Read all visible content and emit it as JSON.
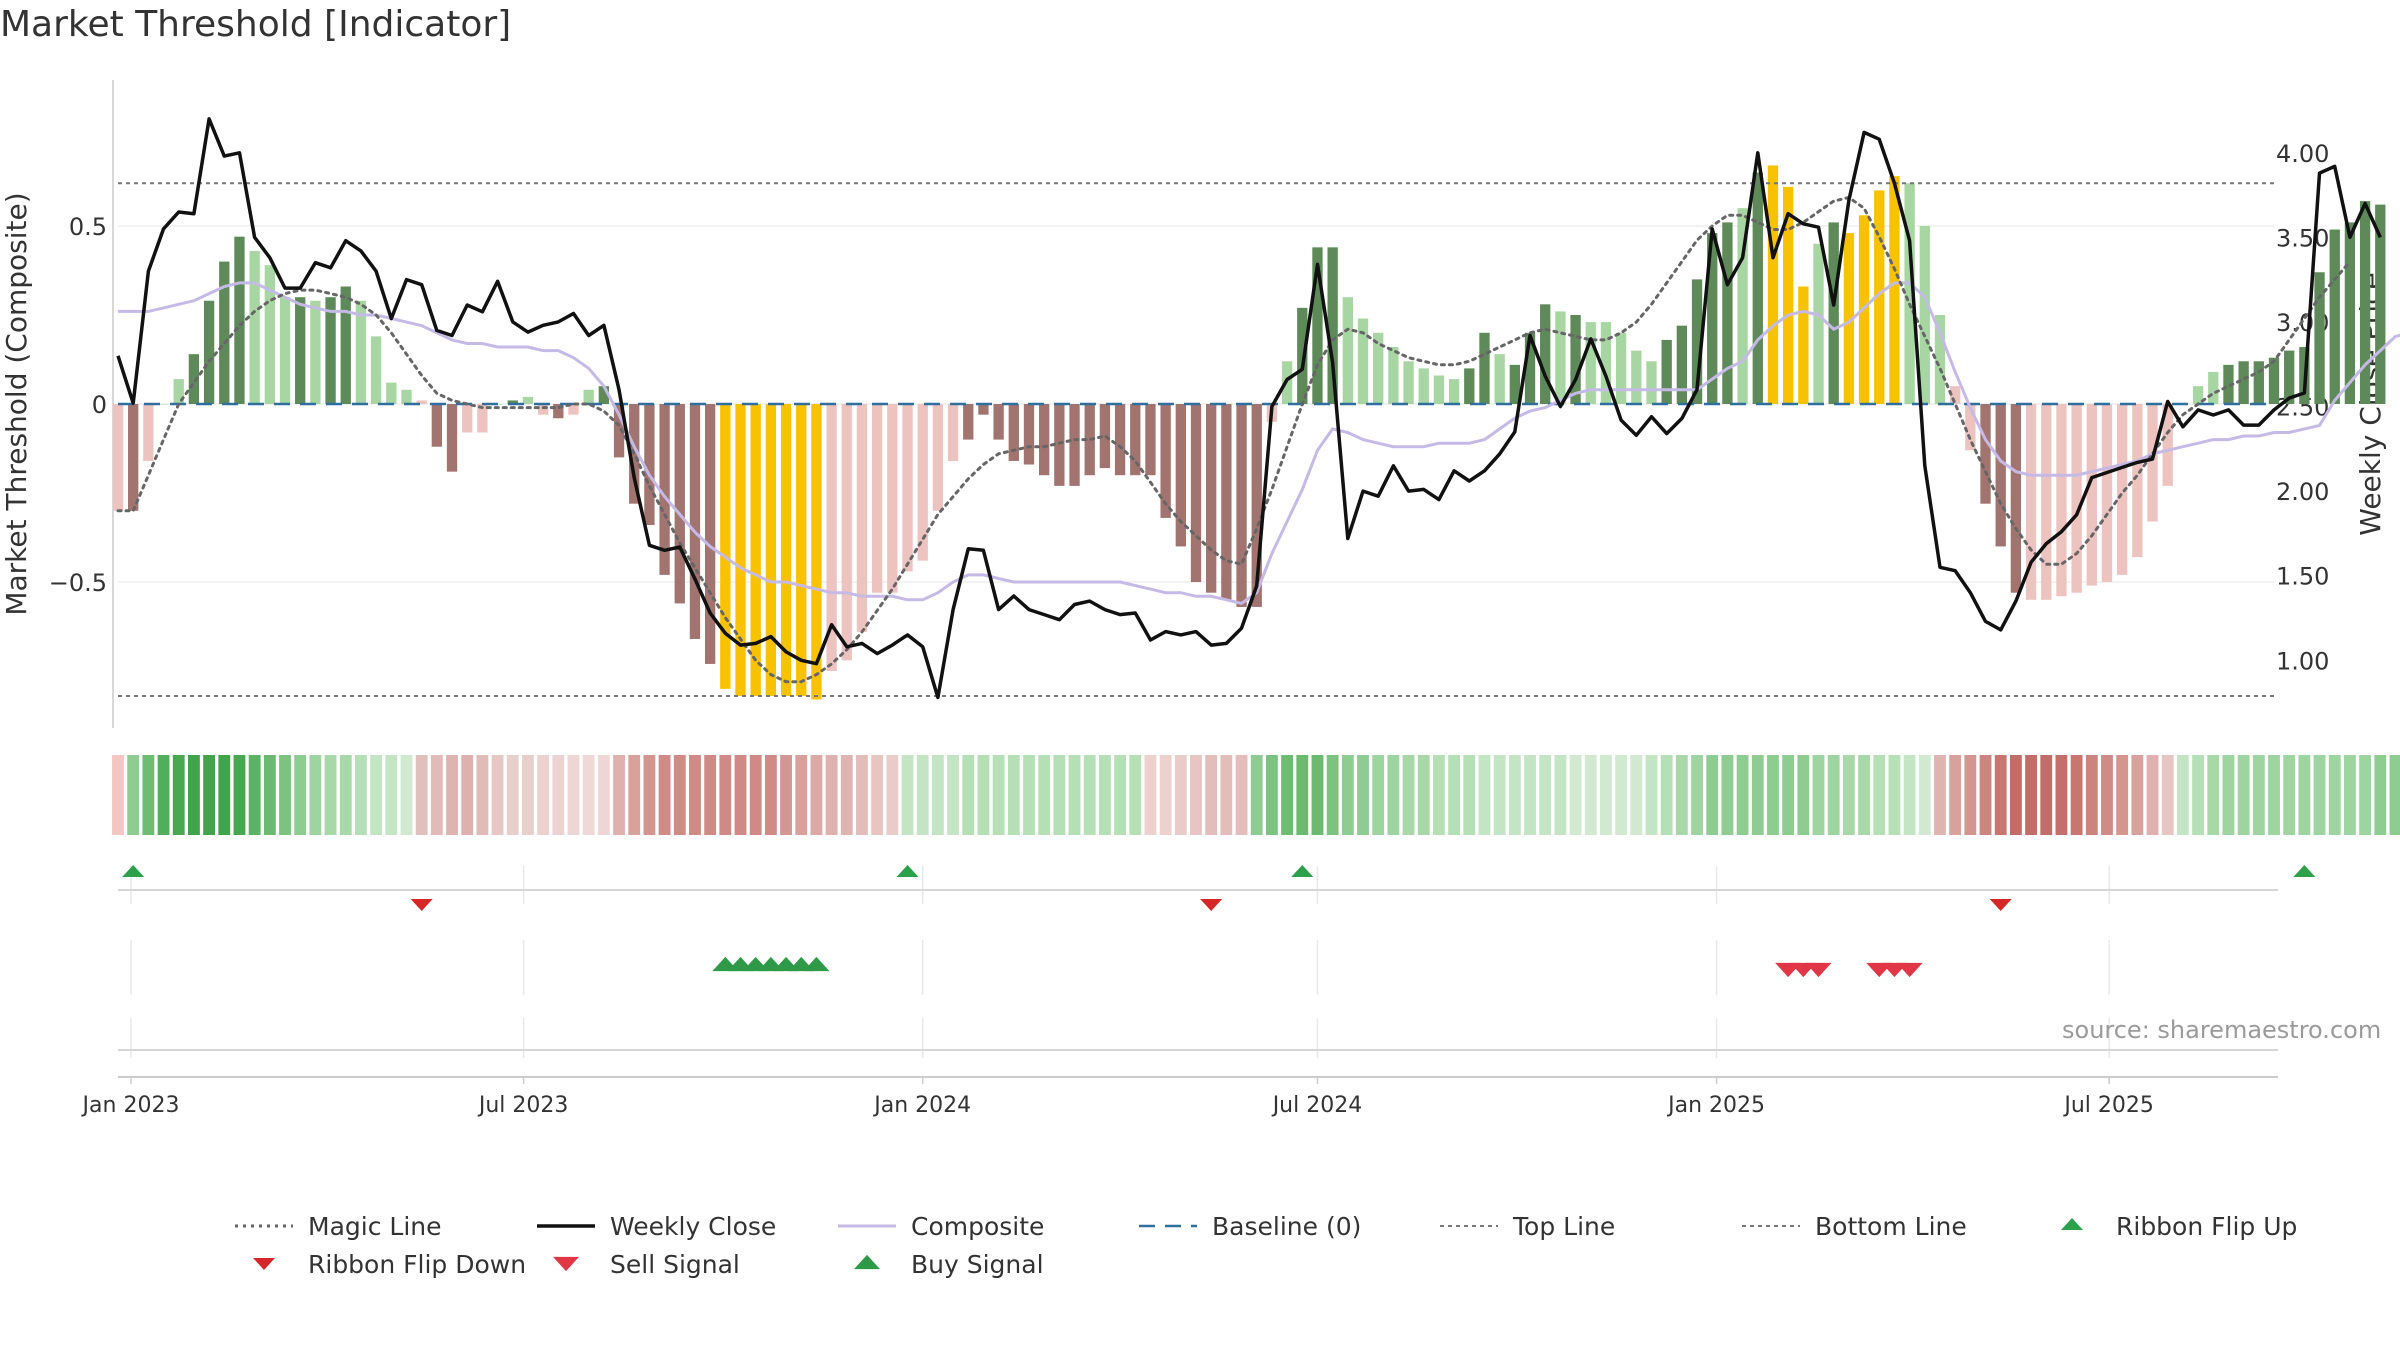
{
  "title": "Market Threshold [Indicator]",
  "watermark": "source: sharemaestro.com",
  "colors": {
    "text": "#333333",
    "grid": "#e6e6e6",
    "magic": "#666666",
    "weekly": "#111111",
    "composite": "#c5b9e6",
    "baseline": "#2e6f9e",
    "threshold": "#777777",
    "pos_dark": "#5e8a5a",
    "pos_light": "#a8d6a3",
    "neg_dark": "#a27470",
    "neg_light": "#edc3c0",
    "extreme": "#f8c200",
    "up_marker": "#2ca04a",
    "down_marker": "#d62728",
    "sell_marker": "#e03646",
    "buy_marker": "#2e9a48"
  },
  "chart_data": {
    "type": "bar",
    "title": "Market Threshold [Indicator]",
    "xlabel": "",
    "ylabel": "Market Threshold (Composite)",
    "y2label": "Weekly Close Price",
    "ylim": [
      -0.91,
      0.91
    ],
    "y2lim": [
      0.6,
      4.43
    ],
    "yticks": [
      {
        "v": 0.5,
        "label": "0.5"
      },
      {
        "v": 0,
        "label": "0"
      },
      {
        "v": -0.5,
        "label": "−0.5"
      }
    ],
    "y2ticks": [
      {
        "v": 4.0,
        "label": "4.00"
      },
      {
        "v": 3.5,
        "label": "3.50"
      },
      {
        "v": 3.0,
        "label": "3.00"
      },
      {
        "v": 2.5,
        "label": "2.50"
      },
      {
        "v": 2.0,
        "label": "2.00"
      },
      {
        "v": 1.5,
        "label": "1.50"
      },
      {
        "v": 1.0,
        "label": "1.00"
      }
    ],
    "x_start": "2022-12-26",
    "x_end": "2025-09-15",
    "xticks": [
      {
        "date": "2023-01-01",
        "label": "Jan 2023"
      },
      {
        "date": "2023-07-01",
        "label": "Jul 2023"
      },
      {
        "date": "2024-01-01",
        "label": "Jan 2024"
      },
      {
        "date": "2024-07-01",
        "label": "Jul 2024"
      },
      {
        "date": "2025-01-01",
        "label": "Jan 2025"
      },
      {
        "date": "2025-07-01",
        "label": "Jul 2025"
      }
    ],
    "first_week": "2022-12-26",
    "week_step_days": 7,
    "top_line": 0.62,
    "bottom_line": -0.82,
    "baseline": 0,
    "composite_bars": [
      -0.3,
      -0.3,
      -0.16,
      0,
      0.07,
      0.14,
      0.29,
      0.4,
      0.47,
      0.43,
      0.39,
      0.3,
      0.3,
      0.29,
      0.3,
      0.33,
      0.29,
      0.19,
      0.06,
      0.04,
      0.01,
      -0.12,
      -0.19,
      -0.08,
      -0.08,
      0,
      0.01,
      0.02,
      -0.03,
      -0.04,
      -0.03,
      0.04,
      0.05,
      -0.15,
      -0.28,
      -0.34,
      -0.48,
      -0.56,
      -0.66,
      -0.73,
      -0.8,
      -0.82,
      -0.82,
      -0.82,
      -0.82,
      -0.82,
      -0.83,
      -0.75,
      -0.72,
      -0.64,
      -0.53,
      -0.53,
      -0.47,
      -0.44,
      -0.3,
      -0.16,
      -0.1,
      -0.03,
      -0.1,
      -0.16,
      -0.17,
      -0.2,
      -0.23,
      -0.23,
      -0.2,
      -0.18,
      -0.2,
      -0.2,
      -0.2,
      -0.32,
      -0.4,
      -0.5,
      -0.53,
      -0.55,
      -0.57,
      -0.57,
      -0.05,
      0.12,
      0.27,
      0.44,
      0.44,
      0.3,
      0.24,
      0.2,
      0.16,
      0.12,
      0.1,
      0.08,
      0.07,
      0.1,
      0.2,
      0.14,
      0.11,
      0.2,
      0.28,
      0.26,
      0.25,
      0.23,
      0.23,
      0.2,
      0.15,
      0.12,
      0.18,
      0.22,
      0.35,
      0.48,
      0.51,
      0.55,
      0.65,
      0.67,
      0.61,
      0.33,
      0.45,
      0.51,
      0.48,
      0.53,
      0.6,
      0.64,
      0.62,
      0.5,
      0.25,
      0.05,
      -0.13,
      -0.28,
      -0.4,
      -0.53,
      -0.55,
      -0.55,
      -0.54,
      -0.53,
      -0.51,
      -0.5,
      -0.48,
      -0.43,
      -0.33,
      -0.23,
      0,
      0.05,
      0.09,
      0.11,
      0.12,
      0.12,
      0.13,
      0.15,
      0.16,
      0.37,
      0.49,
      0.51,
      0.57,
      0.56
    ],
    "bar_shade": [
      "nl",
      "nd",
      "nl",
      "pl",
      "pl",
      "pd",
      "pd",
      "pd",
      "pd",
      "pl",
      "pl",
      "pl",
      "pd",
      "pl",
      "pd",
      "pd",
      "pl",
      "pl",
      "pl",
      "pl",
      "nl",
      "nd",
      "nd",
      "nl",
      "nl",
      "pl",
      "pd",
      "pl",
      "nl",
      "nd",
      "nl",
      "pl",
      "pd",
      "nd",
      "nd",
      "nd",
      "nd",
      "nd",
      "nd",
      "nd",
      "x",
      "x",
      "x",
      "x",
      "x",
      "x",
      "x",
      "nl",
      "nl",
      "nl",
      "nl",
      "nl",
      "nl",
      "nl",
      "nl",
      "nl",
      "nd",
      "nd",
      "nd",
      "nd",
      "nd",
      "nd",
      "nd",
      "nd",
      "nd",
      "nd",
      "nd",
      "nd",
      "nd",
      "nd",
      "nd",
      "nd",
      "nd",
      "nd",
      "nd",
      "nd",
      "nl",
      "pl",
      "pd",
      "pd",
      "pd",
      "pl",
      "pl",
      "pl",
      "pl",
      "pl",
      "pl",
      "pl",
      "pl",
      "pd",
      "pd",
      "pl",
      "pd",
      "pd",
      "pd",
      "pl",
      "pd",
      "pl",
      "pl",
      "pl",
      "pl",
      "pl",
      "pd",
      "pd",
      "pd",
      "pd",
      "pd",
      "pl",
      "pd",
      "x",
      "x",
      "x",
      "pl",
      "pd",
      "x",
      "x",
      "x",
      "x",
      "pl",
      "pl",
      "pl",
      "nl",
      "nl",
      "nd",
      "nd",
      "nd",
      "nl",
      "nl",
      "nl",
      "nl",
      "nl",
      "nl",
      "nl",
      "nl",
      "nl",
      "nl",
      "nl",
      "pl",
      "pl",
      "pd",
      "pd",
      "pd",
      "pd",
      "pd",
      "pd",
      "pd",
      "pd",
      "pd",
      "pd",
      "pd",
      "pl"
    ],
    "series": [
      {
        "name": "Magic Line",
        "style": "dotted",
        "axis": "left",
        "values": [
          -0.3,
          -0.3,
          -0.2,
          -0.1,
          0,
          0.06,
          0.12,
          0.17,
          0.22,
          0.26,
          0.29,
          0.31,
          0.32,
          0.32,
          0.31,
          0.3,
          0.28,
          0.25,
          0.2,
          0.14,
          0.08,
          0.03,
          0.01,
          0,
          -0.01,
          -0.01,
          -0.01,
          -0.01,
          -0.01,
          -0.01,
          0,
          0,
          -0.02,
          -0.06,
          -0.14,
          -0.23,
          -0.31,
          -0.39,
          -0.46,
          -0.53,
          -0.6,
          -0.66,
          -0.72,
          -0.76,
          -0.78,
          -0.78,
          -0.76,
          -0.73,
          -0.69,
          -0.64,
          -0.58,
          -0.52,
          -0.45,
          -0.38,
          -0.31,
          -0.26,
          -0.21,
          -0.17,
          -0.14,
          -0.13,
          -0.12,
          -0.12,
          -0.11,
          -0.1,
          -0.1,
          -0.09,
          -0.12,
          -0.16,
          -0.22,
          -0.28,
          -0.33,
          -0.37,
          -0.41,
          -0.44,
          -0.45,
          -0.35,
          -0.24,
          -0.12,
          0,
          0.11,
          0.18,
          0.21,
          0.2,
          0.17,
          0.15,
          0.13,
          0.12,
          0.11,
          0.11,
          0.12,
          0.14,
          0.16,
          0.18,
          0.2,
          0.21,
          0.2,
          0.19,
          0.18,
          0.18,
          0.2,
          0.23,
          0.28,
          0.34,
          0.4,
          0.46,
          0.5,
          0.53,
          0.53,
          0.51,
          0.49,
          0.49,
          0.51,
          0.54,
          0.57,
          0.58,
          0.55,
          0.47,
          0.38,
          0.28,
          0.19,
          0.1,
          0,
          -0.1,
          -0.19,
          -0.28,
          -0.35,
          -0.41,
          -0.45,
          -0.45,
          -0.42,
          -0.37,
          -0.31,
          -0.25,
          -0.2,
          -0.14,
          -0.08,
          -0.03,
          0,
          0.03,
          0.05,
          0.07,
          0.09,
          0.12,
          0.18,
          0.24,
          0.3,
          0.35,
          0.4
        ]
      },
      {
        "name": "Weekly Close",
        "style": "solid",
        "axis": "right",
        "values": [
          2.8,
          2.52,
          3.3,
          3.55,
          3.65,
          3.64,
          4.2,
          3.98,
          4.0,
          3.5,
          3.38,
          3.2,
          3.2,
          3.35,
          3.32,
          3.48,
          3.42,
          3.3,
          3.02,
          3.25,
          3.22,
          2.95,
          2.92,
          3.1,
          3.06,
          3.24,
          3.0,
          2.94,
          2.98,
          3.0,
          3.05,
          2.92,
          2.98,
          2.6,
          2.08,
          1.68,
          1.65,
          1.67,
          1.48,
          1.28,
          1.16,
          1.09,
          1.1,
          1.14,
          1.05,
          1.0,
          0.98,
          1.21,
          1.08,
          1.1,
          1.04,
          1.09,
          1.15,
          1.08,
          0.78,
          1.3,
          1.66,
          1.65,
          1.3,
          1.38,
          1.3,
          1.27,
          1.24,
          1.33,
          1.35,
          1.3,
          1.27,
          1.28,
          1.12,
          1.17,
          1.15,
          1.17,
          1.09,
          1.1,
          1.19,
          1.44,
          2.5,
          2.66,
          2.72,
          3.34,
          2.76,
          1.72,
          2.0,
          1.97,
          2.15,
          2.0,
          2.01,
          1.95,
          2.12,
          2.06,
          2.12,
          2.22,
          2.35,
          2.92,
          2.68,
          2.5,
          2.66,
          2.9,
          2.68,
          2.42,
          2.33,
          2.44,
          2.34,
          2.43,
          2.6,
          3.55,
          3.22,
          3.38,
          4.0,
          3.38,
          3.64,
          3.58,
          3.56,
          3.1,
          3.72,
          4.12,
          4.08,
          3.82,
          3.48,
          2.15,
          1.55,
          1.53,
          1.4,
          1.23,
          1.18,
          1.35,
          1.58,
          1.69,
          1.76,
          1.86,
          2.08,
          2.11,
          2.14,
          2.17,
          2.19,
          2.53,
          2.38,
          2.48,
          2.45,
          2.48,
          2.39,
          2.39,
          2.48,
          2.55,
          2.58,
          3.88,
          3.92,
          3.5,
          3.7,
          3.5
        ],
        "y_values_axis": "right"
      },
      {
        "name": "Composite",
        "style": "solid",
        "axis": "left",
        "values": [
          0.26,
          0.26,
          0.26,
          0.27,
          0.28,
          0.29,
          0.31,
          0.33,
          0.34,
          0.34,
          0.32,
          0.3,
          0.28,
          0.27,
          0.26,
          0.26,
          0.25,
          0.25,
          0.24,
          0.23,
          0.22,
          0.2,
          0.18,
          0.17,
          0.17,
          0.16,
          0.16,
          0.16,
          0.15,
          0.15,
          0.13,
          0.1,
          0.05,
          -0.03,
          -0.12,
          -0.2,
          -0.26,
          -0.31,
          -0.36,
          -0.4,
          -0.43,
          -0.46,
          -0.48,
          -0.5,
          -0.5,
          -0.51,
          -0.52,
          -0.53,
          -0.53,
          -0.54,
          -0.54,
          -0.54,
          -0.55,
          -0.55,
          -0.53,
          -0.5,
          -0.48,
          -0.48,
          -0.49,
          -0.5,
          -0.5,
          -0.5,
          -0.5,
          -0.5,
          -0.5,
          -0.5,
          -0.5,
          -0.51,
          -0.52,
          -0.53,
          -0.53,
          -0.54,
          -0.54,
          -0.55,
          -0.56,
          -0.53,
          -0.42,
          -0.33,
          -0.24,
          -0.13,
          -0.07,
          -0.08,
          -0.1,
          -0.11,
          -0.12,
          -0.12,
          -0.12,
          -0.11,
          -0.11,
          -0.11,
          -0.1,
          -0.07,
          -0.04,
          -0.02,
          -0.01,
          0.01,
          0.03,
          0.04,
          0.04,
          0.04,
          0.04,
          0.04,
          0.04,
          0.04,
          0.04,
          0.07,
          0.1,
          0.12,
          0.18,
          0.22,
          0.25,
          0.26,
          0.25,
          0.21,
          0.23,
          0.27,
          0.31,
          0.34,
          0.34,
          0.3,
          0.2,
          0.09,
          -0.01,
          -0.1,
          -0.16,
          -0.19,
          -0.2,
          -0.2,
          -0.2,
          -0.2,
          -0.19,
          -0.18,
          -0.17,
          -0.16,
          -0.14,
          -0.13,
          -0.12,
          -0.11,
          -0.1,
          -0.1,
          -0.09,
          -0.09,
          -0.08,
          -0.08,
          -0.07,
          -0.06,
          0.01,
          0.06,
          0.11,
          0.15,
          0.19,
          0.2
        ]
      },
      {
        "name": "Baseline (0)",
        "style": "dashed",
        "axis": "left",
        "values": [
          0
        ]
      },
      {
        "name": "Top Line",
        "style": "dotted",
        "axis": "left",
        "values": [
          0.62
        ]
      },
      {
        "name": "Bottom Line",
        "style": "dotted",
        "axis": "left",
        "values": [
          -0.82
        ]
      }
    ],
    "ribbon_colors": [
      "#f2c7c2",
      "#8fcc92",
      "#6dbc72",
      "#52ae5c",
      "#48a852",
      "#41a44c",
      "#41a44c",
      "#41a44c",
      "#48a852",
      "#5ab364",
      "#6bba70",
      "#7cc281",
      "#8fcc92",
      "#9ed49f",
      "#a8d8a8",
      "#a8d8a8",
      "#b5dfb5",
      "#c4e5c3",
      "#c4e5c3",
      "#d0e9cf",
      "#e0c0bd",
      "#e0bbb8",
      "#deb4b1",
      "#deb1ae",
      "#e0bbb8",
      "#e6c7c4",
      "#e7cfcc",
      "#e7cfcc",
      "#ecd1cf",
      "#ecd3d1",
      "#edd6d4",
      "#eed9d7",
      "#edd6d4",
      "#dfb0ac",
      "#d8a19c",
      "#d4958f",
      "#d08b86",
      "#d08b86",
      "#cf8a85",
      "#cf8a85",
      "#cf8a85",
      "#cf8a85",
      "#cf8a85",
      "#d08b86",
      "#d29793",
      "#d8a19c",
      "#dbaaa6",
      "#deb1ae",
      "#deb4b1",
      "#e3bdba",
      "#e6c5c2",
      "#e9ccc9",
      "#c4e5c3",
      "#c4e5c3",
      "#c4e5c3",
      "#c4e5c3",
      "#b5dfb5",
      "#b5dfb5",
      "#b5dfb5",
      "#b5dfb5",
      "#b5dfb5",
      "#b5dfb5",
      "#b5dfb5",
      "#b5dfb5",
      "#b5dfb5",
      "#b5dfb5",
      "#b5dfb5",
      "#b5dfb5",
      "#ecd1cf",
      "#ecd1cf",
      "#e9ccc9",
      "#e6c5c2",
      "#e3bdba",
      "#e3bdba",
      "#e3bdba",
      "#8fcc92",
      "#7cc281",
      "#6dbc72",
      "#6bba70",
      "#6bba70",
      "#7cc281",
      "#8fcc92",
      "#8fcc92",
      "#9ed49f",
      "#9ed49f",
      "#a8d8a8",
      "#a8d8a8",
      "#b5dfb5",
      "#b5dfb5",
      "#b5dfb5",
      "#c4e5c3",
      "#c4e5c3",
      "#c4e5c3",
      "#c4e5c3",
      "#c4e5c3",
      "#c4e5c3",
      "#d0e9cf",
      "#d0e9cf",
      "#d0e9cf",
      "#d0e9cf",
      "#d0e9cf",
      "#c4e5c3",
      "#b5dfb5",
      "#a8d8a8",
      "#9ed49f",
      "#8fcc92",
      "#8fcc92",
      "#8fcc92",
      "#8fcc92",
      "#8fcc92",
      "#8fcc92",
      "#8fcc92",
      "#9ed49f",
      "#9ed49f",
      "#a8d8a8",
      "#a8d8a8",
      "#b5dfb5",
      "#b5dfb5",
      "#c4e5c3",
      "#d0e9cf",
      "#deb4b1",
      "#d8a19c",
      "#d4958f",
      "#cc847f",
      "#c77670",
      "#c26d67",
      "#c26d67",
      "#c26d67",
      "#c46f69",
      "#c77670",
      "#cc847f",
      "#d08b86",
      "#d4958f",
      "#d8a19c",
      "#deb1ae",
      "#e6c5c2",
      "#c4e5c3",
      "#b5dfb5",
      "#a8d8a8",
      "#9ed49f",
      "#9ed49f",
      "#9ed49f",
      "#9ed49f",
      "#9ed49f",
      "#9ed49f",
      "#9ed49f",
      "#9ed49f",
      "#9ed49f",
      "#9ed49f",
      "#8fcc92",
      "#8fcc92"
    ],
    "markers": {
      "ribbon_flip_up": [
        1,
        52,
        78,
        144
      ],
      "ribbon_flip_down": [
        20,
        72,
        124
      ],
      "buy_signal": [
        40,
        41,
        42,
        43,
        44,
        45,
        46
      ],
      "sell_signal": [
        110,
        111,
        112,
        116,
        117,
        118
      ]
    },
    "legend": {
      "placement": "bottom",
      "entries": [
        {
          "label": "Magic Line",
          "key": "magic"
        },
        {
          "label": "Weekly Close",
          "key": "weekly"
        },
        {
          "label": "Composite",
          "key": "composite"
        },
        {
          "label": "Baseline (0)",
          "key": "baseline"
        },
        {
          "label": "Top Line",
          "key": "top"
        },
        {
          "label": "Bottom Line",
          "key": "bottom"
        },
        {
          "label": "Ribbon Flip Up",
          "key": "flipup"
        },
        {
          "label": "Ribbon Flip Down",
          "key": "flipdown"
        },
        {
          "label": "Sell Signal",
          "key": "sell"
        },
        {
          "label": "Buy Signal",
          "key": "buy"
        }
      ]
    }
  }
}
